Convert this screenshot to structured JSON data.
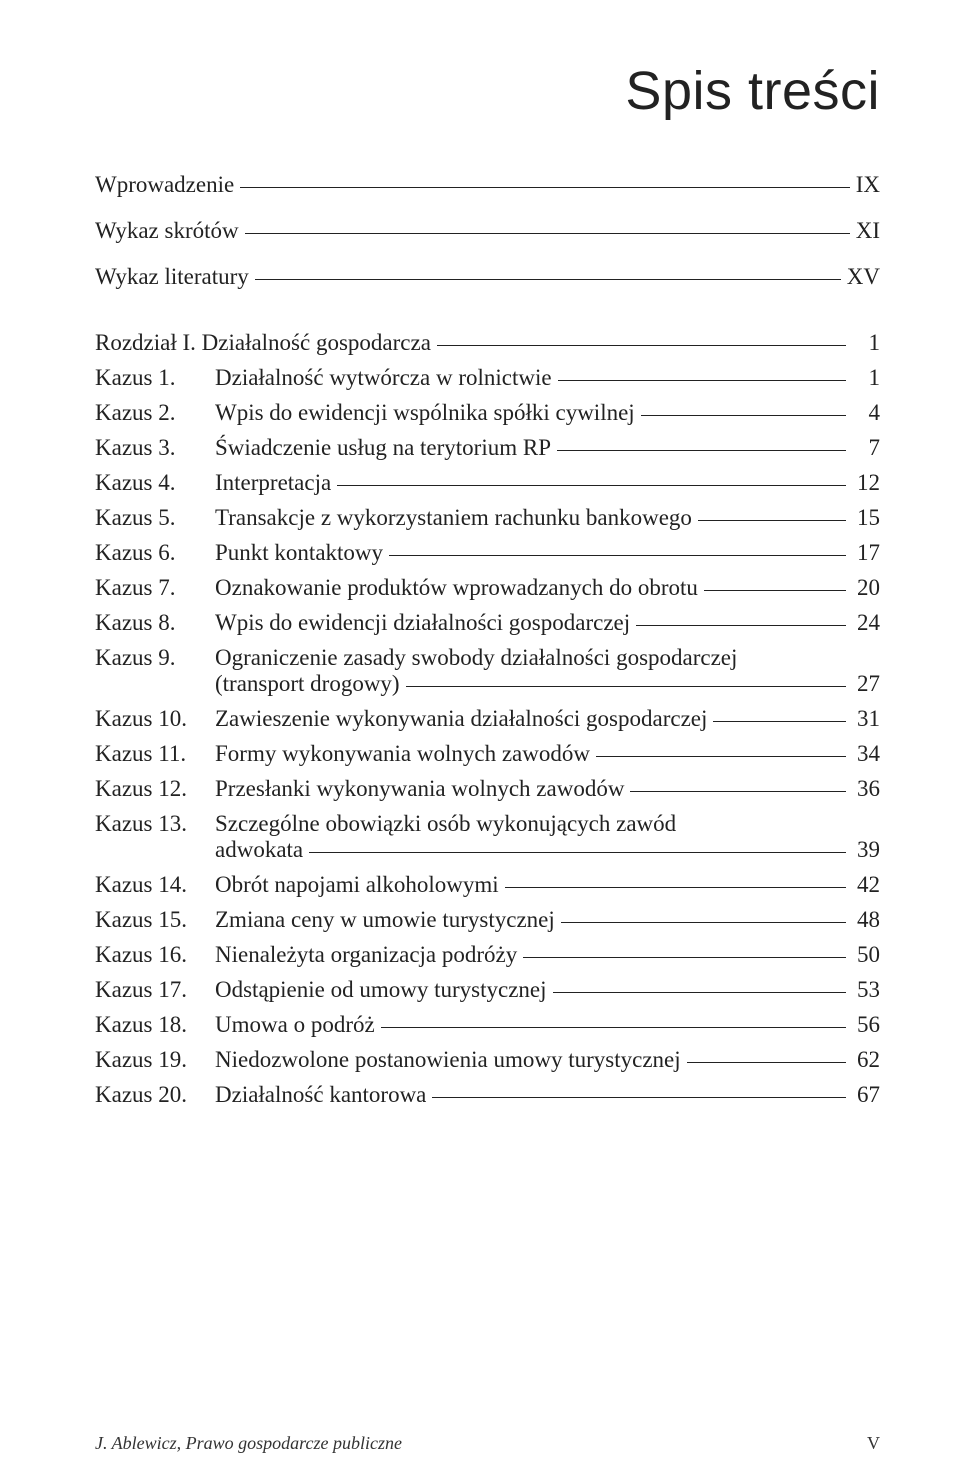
{
  "heading": "Spis treści",
  "frontmatter": [
    {
      "label": "Wprowadzenie",
      "page": "IX"
    },
    {
      "label": "Wykaz skrótów",
      "page": "XI"
    },
    {
      "label": "Wykaz literatury",
      "page": "XV"
    }
  ],
  "chapter": {
    "label": "Rozdział I. Działalność gospodarcza",
    "page": "1"
  },
  "entries": [
    {
      "key": "Kazus 1.",
      "title": "Działalność wytwórcza w rolnictwie",
      "page": "1"
    },
    {
      "key": "Kazus 2.",
      "title": "Wpis do ewidencji wspólnika spółki cywilnej",
      "page": "4"
    },
    {
      "key": "Kazus 3.",
      "title": "Świadczenie usług na terytorium RP",
      "page": "7"
    },
    {
      "key": "Kazus 4.",
      "title": "Interpretacja",
      "page": "12"
    },
    {
      "key": "Kazus 5.",
      "title": "Transakcje z wykorzystaniem rachunku bankowego",
      "page": "15"
    },
    {
      "key": "Kazus 6.",
      "title": "Punkt kontaktowy",
      "page": "17"
    },
    {
      "key": "Kazus 7.",
      "title": "Oznakowanie produktów wprowadzanych do obrotu",
      "page": "20"
    },
    {
      "key": "Kazus 8.",
      "title": "Wpis do ewidencji działalności gospodarczej",
      "page": "24"
    },
    {
      "key": "Kazus 9.",
      "title": "Ograniczenie zasady swobody działalności gospodarczej",
      "title2": "(transport drogowy)",
      "page": "27"
    },
    {
      "key": "Kazus 10.",
      "title": "Zawieszenie wykonywania działalności gospodarczej",
      "page": "31"
    },
    {
      "key": "Kazus 11.",
      "title": "Formy wykonywania wolnych zawodów",
      "page": "34"
    },
    {
      "key": "Kazus 12.",
      "title": "Przesłanki wykonywania wolnych zawodów",
      "page": "36"
    },
    {
      "key": "Kazus 13.",
      "title": "Szczególne obowiązki osób wykonujących zawód",
      "title2": "adwokata",
      "page": "39"
    },
    {
      "key": "Kazus 14.",
      "title": "Obrót napojami alkoholowymi",
      "page": "42"
    },
    {
      "key": "Kazus 15.",
      "title": "Zmiana ceny w umowie turystycznej",
      "page": "48"
    },
    {
      "key": "Kazus 16.",
      "title": "Nienależyta organizacja podróży",
      "page": "50"
    },
    {
      "key": "Kazus 17.",
      "title": "Odstąpienie od umowy turystycznej",
      "page": "53"
    },
    {
      "key": "Kazus 18.",
      "title": "Umowa o podróż",
      "page": "56"
    },
    {
      "key": "Kazus 19.",
      "title": "Niedozwolone postanowienia umowy turystycznej",
      "page": "62"
    },
    {
      "key": "Kazus 20.",
      "title": "Działalność kantorowa",
      "page": "67"
    }
  ],
  "footer": {
    "left": "J. Ablewicz, Prawo gospodarcze publiczne",
    "right": "V"
  },
  "colors": {
    "text": "#222222",
    "background": "#ffffff",
    "rule": "#222222"
  },
  "fontsizes": {
    "heading": 54,
    "body": 23,
    "footer": 18
  }
}
